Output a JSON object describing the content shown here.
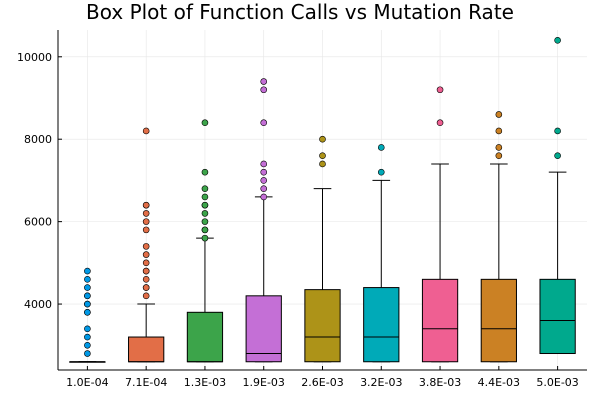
{
  "chart_data": {
    "type": "box",
    "title": "Box Plot of Function Calls vs Mutation Rate",
    "xlabel": "",
    "ylabel": "",
    "grid": true,
    "legend": "none",
    "ylim": [
      2400,
      10650
    ],
    "yticks": [
      4000,
      6000,
      8000,
      10000
    ],
    "categories": [
      "1.0E-04",
      "7.1E-04",
      "1.3E-03",
      "1.9E-03",
      "2.6E-03",
      "3.2E-03",
      "3.8E-03",
      "4.4E-03",
      "5.0E-03"
    ],
    "colors": [
      "#0099e6",
      "#e26e47",
      "#3ca44a",
      "#c46fd6",
      "#ad9318",
      "#00aab8",
      "#ef5f92",
      "#cb8124",
      "#00a98d"
    ],
    "boxes": [
      {
        "lower_whisker": 2600,
        "q1": 2600,
        "median": 2600,
        "q3": 2600,
        "upper_whisker": 2600,
        "outliers": [
          2800,
          3000,
          3200,
          3400,
          3800,
          3800,
          4000,
          4000,
          4200,
          4200,
          4400,
          4600,
          4800
        ]
      },
      {
        "lower_whisker": 2600,
        "q1": 2600,
        "median": 2600,
        "q3": 3200,
        "upper_whisker": 4000,
        "outliers": [
          4200,
          4400,
          4400,
          4600,
          4800,
          4800,
          5000,
          5200,
          5400,
          5800,
          6000,
          6200,
          6400,
          6400,
          8200
        ]
      },
      {
        "lower_whisker": 2600,
        "q1": 2600,
        "median": 2600,
        "q3": 3800,
        "upper_whisker": 5600,
        "outliers": [
          5600,
          5800,
          5800,
          6000,
          6200,
          6400,
          6400,
          6600,
          6800,
          7200,
          8400
        ]
      },
      {
        "lower_whisker": 2600,
        "q1": 2600,
        "median": 2800,
        "q3": 4200,
        "upper_whisker": 6600,
        "outliers": [
          6600,
          6800,
          7000,
          7200,
          7400,
          8400,
          9200,
          9400
        ]
      },
      {
        "lower_whisker": 2600,
        "q1": 2600,
        "median": 3200,
        "q3": 4350,
        "upper_whisker": 6800,
        "outliers": [
          7400,
          7600,
          8000
        ]
      },
      {
        "lower_whisker": 2600,
        "q1": 2600,
        "median": 3200,
        "q3": 4400,
        "upper_whisker": 7000,
        "outliers": [
          7200,
          7800
        ]
      },
      {
        "lower_whisker": 2600,
        "q1": 2600,
        "median": 3400,
        "q3": 4600,
        "upper_whisker": 7400,
        "outliers": [
          8400,
          9200
        ]
      },
      {
        "lower_whisker": 2600,
        "q1": 2600,
        "median": 3400,
        "q3": 4600,
        "upper_whisker": 7400,
        "outliers": [
          7600,
          7800,
          8200,
          8600
        ]
      },
      {
        "lower_whisker": 2800,
        "q1": 2800,
        "median": 3600,
        "q3": 4600,
        "upper_whisker": 7200,
        "outliers": [
          7600,
          8200,
          10400
        ]
      }
    ]
  }
}
